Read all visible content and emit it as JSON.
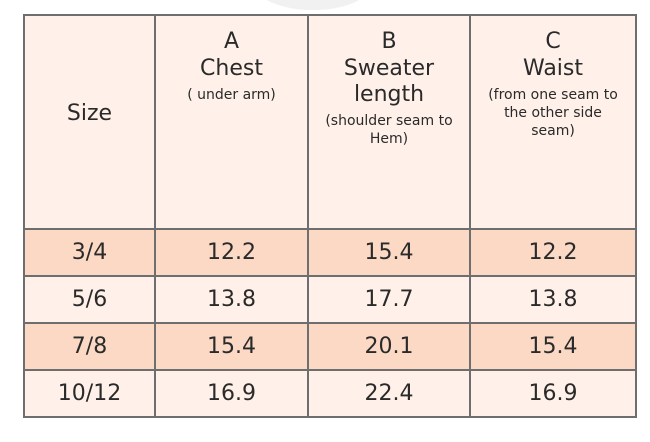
{
  "header": {
    "size_label": "Size",
    "columns": [
      {
        "letter": "A",
        "name": "Chest",
        "note": "( under arm)"
      },
      {
        "letter": "B",
        "name": "Sweater length",
        "note": "(shoulder seam to Hem)"
      },
      {
        "letter": "C",
        "name": "Waist",
        "note": "(from one seam to the other side seam)"
      }
    ]
  },
  "rows": [
    {
      "size": "3/4",
      "chest": "12.2",
      "length": "15.4",
      "waist": "12.2"
    },
    {
      "size": "5/6",
      "chest": "13.8",
      "length": "17.7",
      "waist": "13.8"
    },
    {
      "size": "7/8",
      "chest": "15.4",
      "length": "20.1",
      "waist": "15.4"
    },
    {
      "size": "10/12",
      "chest": "16.9",
      "length": "22.4",
      "waist": "16.9"
    }
  ],
  "colors": {
    "header_bg": "#fff1e9",
    "shaded_row": "#fbd9c5",
    "border": "#6e6e6e"
  }
}
